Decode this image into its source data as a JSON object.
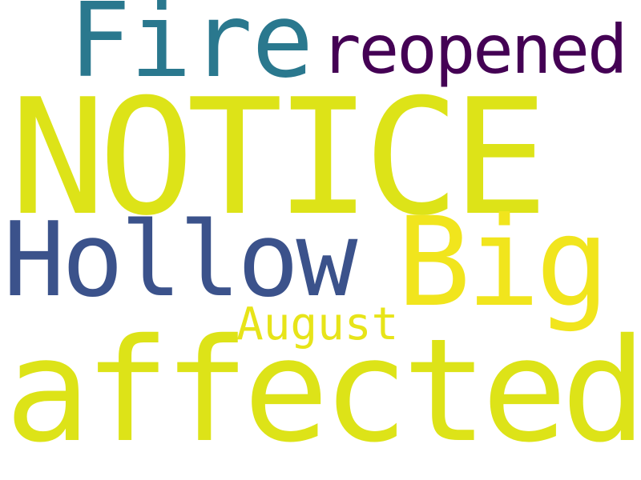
{
  "words": [
    {
      "id": "fire",
      "text": "Fire",
      "color": "#2a788e"
    },
    {
      "id": "reopened",
      "text": "reopened",
      "color": "#440154"
    },
    {
      "id": "notice",
      "text": "NOTICE",
      "color": "#dde318"
    },
    {
      "id": "hollow",
      "text": "Hollow",
      "color": "#3b528b"
    },
    {
      "id": "big",
      "text": "Big",
      "color": "#f1e51d"
    },
    {
      "id": "august",
      "text": "August",
      "color": "#e7e419"
    },
    {
      "id": "affected",
      "text": "affected",
      "color": "#dde318"
    }
  ]
}
